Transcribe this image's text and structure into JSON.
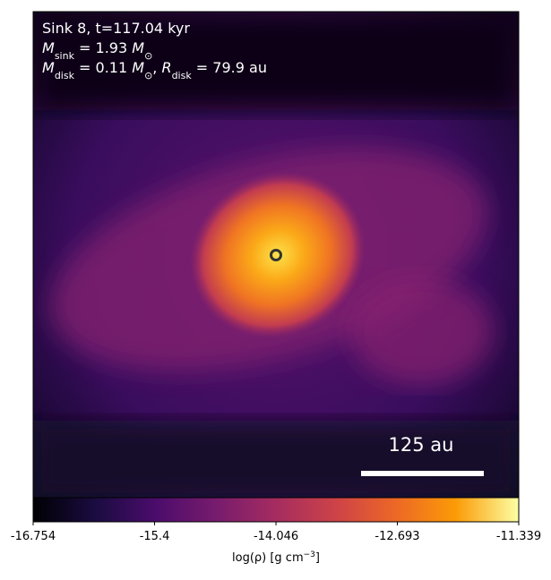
{
  "chart_data": {
    "type": "density-map",
    "annotation_lines": [
      [
        {
          "text": "Sink 8, t=117.04 kyr",
          "style": "normal"
        }
      ],
      [
        {
          "text": "M",
          "style": "italic"
        },
        {
          "text": "sink",
          "style": "sub"
        },
        {
          "text": " = 1.93 ",
          "style": "normal"
        },
        {
          "text": "M",
          "style": "italic"
        },
        {
          "text": "⊙",
          "style": "sub"
        }
      ],
      [
        {
          "text": "M",
          "style": "italic"
        },
        {
          "text": "disk",
          "style": "sub"
        },
        {
          "text": " = 0.11 ",
          "style": "normal"
        },
        {
          "text": "M",
          "style": "italic"
        },
        {
          "text": "⊙",
          "style": "sub"
        },
        {
          "text": ", ",
          "style": "normal"
        },
        {
          "text": "R",
          "style": "italic"
        },
        {
          "text": "disk",
          "style": "sub"
        },
        {
          "text": " = 79.9 au",
          "style": "normal"
        }
      ]
    ],
    "scale_bar_label": "125 au",
    "colorbar": {
      "lim": [
        -16.754,
        -11.339
      ],
      "ticks": [
        -16.754,
        -15.4,
        {
          "value": -14.046,
          "label": "-14.046"
        },
        -12.693,
        -11.339
      ],
      "label": [
        {
          "text": "log(ρ) [g cm",
          "style": "normal"
        },
        {
          "text": "−3",
          "style": "sup"
        },
        {
          "text": "]",
          "style": "normal"
        }
      ]
    }
  }
}
